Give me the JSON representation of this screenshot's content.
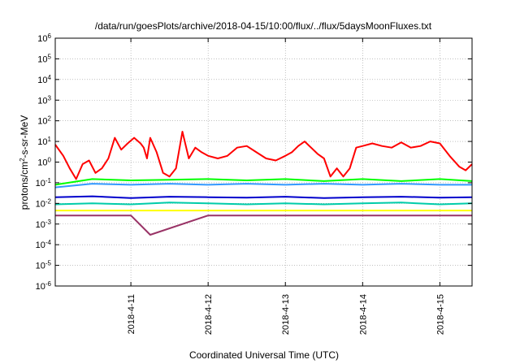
{
  "chart_data": {
    "type": "line",
    "title": "/data/run/goesPlots/archive/2018-04-15/10:00/flux/../flux/5daysMoonFluxes.txt",
    "xlabel": "Coordinated Universal Time (UTC)",
    "ylabel": "protons/cm²-s-sr-MeV",
    "ylabel_parts": {
      "pre": "protons/cm",
      "sup": "2",
      "post": "-s-sr-MeV"
    },
    "xlim": [
      "2018-04-10T00:30",
      "2018-04-15T10:00"
    ],
    "ylim": [
      1e-06,
      1000000.0
    ],
    "yscale": "log",
    "grid": true,
    "x_ticks": [
      {
        "label": "2018-4-11",
        "date": "2018-04-11T00:00"
      },
      {
        "label": "2018-4-12",
        "date": "2018-04-12T00:00"
      },
      {
        "label": "2018-4-13",
        "date": "2018-04-13T00:00"
      },
      {
        "label": "2018-4-14",
        "date": "2018-04-14T00:00"
      },
      {
        "label": "2018-4-15",
        "date": "2018-04-15T00:00"
      }
    ],
    "y_ticks": [
      {
        "base": "10",
        "exp": "-6",
        "value": 1e-06
      },
      {
        "base": "10",
        "exp": "-5",
        "value": 1e-05
      },
      {
        "base": "10",
        "exp": "-4",
        "value": 0.0001
      },
      {
        "base": "10",
        "exp": "-3",
        "value": 0.001
      },
      {
        "base": "10",
        "exp": "-2",
        "value": 0.01
      },
      {
        "base": "10",
        "exp": "-1",
        "value": 0.1
      },
      {
        "base": "10",
        "exp": "0",
        "value": 1
      },
      {
        "base": "10",
        "exp": "1",
        "value": 10
      },
      {
        "base": "10",
        "exp": "2",
        "value": 100
      },
      {
        "base": "10",
        "exp": "3",
        "value": 1000
      },
      {
        "base": "10",
        "exp": "4",
        "value": 10000
      },
      {
        "base": "10",
        "exp": "5",
        "value": 100000
      },
      {
        "base": "10",
        "exp": "6",
        "value": 1000000
      }
    ],
    "series": [
      {
        "color": "#ff0000",
        "x": [
          "2018-04-10T00:30",
          "2018-04-10T03:00",
          "2018-04-10T05:00",
          "2018-04-10T07:00",
          "2018-04-10T09:00",
          "2018-04-10T11:00",
          "2018-04-10T13:00",
          "2018-04-10T15:00",
          "2018-04-10T17:00",
          "2018-04-10T19:00",
          "2018-04-10T21:00",
          "2018-04-10T23:00",
          "2018-04-11T01:00",
          "2018-04-11T03:00",
          "2018-04-11T04:00",
          "2018-04-11T05:00",
          "2018-04-11T06:00",
          "2018-04-11T08:00",
          "2018-04-11T10:00",
          "2018-04-11T12:00",
          "2018-04-11T14:00",
          "2018-04-11T16:00",
          "2018-04-11T18:00",
          "2018-04-11T20:00",
          "2018-04-11T22:00",
          "2018-04-12T00:00",
          "2018-04-12T03:00",
          "2018-04-12T06:00",
          "2018-04-12T09:00",
          "2018-04-12T12:00",
          "2018-04-12T15:00",
          "2018-04-12T18:00",
          "2018-04-12T21:00",
          "2018-04-13T00:00",
          "2018-04-13T02:00",
          "2018-04-13T04:00",
          "2018-04-13T06:00",
          "2018-04-13T08:00",
          "2018-04-13T10:00",
          "2018-04-13T12:00",
          "2018-04-13T14:00",
          "2018-04-13T16:00",
          "2018-04-13T18:00",
          "2018-04-13T20:00",
          "2018-04-13T22:00",
          "2018-04-14T00:00",
          "2018-04-14T03:00",
          "2018-04-14T06:00",
          "2018-04-14T09:00",
          "2018-04-14T12:00",
          "2018-04-14T15:00",
          "2018-04-14T18:00",
          "2018-04-14T21:00",
          "2018-04-15T00:00",
          "2018-04-15T03:00",
          "2018-04-15T06:00",
          "2018-04-15T08:00",
          "2018-04-15T10:00"
        ],
        "values": [
          7,
          2,
          0.5,
          0.15,
          0.8,
          1.2,
          0.3,
          0.5,
          1.5,
          15,
          4,
          8,
          15,
          8,
          5,
          1.5,
          15,
          3,
          0.3,
          0.2,
          0.5,
          30,
          1.5,
          5,
          3,
          2,
          1.5,
          2,
          5,
          6,
          3,
          1.5,
          1.2,
          2,
          3,
          6,
          10,
          5,
          2.5,
          1.5,
          0.2,
          0.5,
          0.2,
          0.5,
          5,
          6,
          8,
          6,
          5,
          9,
          5,
          6,
          10,
          8,
          2,
          0.6,
          0.4,
          0.8
        ]
      },
      {
        "color": "#00ff00",
        "x": [
          "2018-04-10T00:30",
          "2018-04-10T12:00",
          "2018-04-11T00:00",
          "2018-04-11T12:00",
          "2018-04-12T00:00",
          "2018-04-12T12:00",
          "2018-04-13T00:00",
          "2018-04-13T12:00",
          "2018-04-14T00:00",
          "2018-04-14T12:00",
          "2018-04-15T00:00",
          "2018-04-15T10:00"
        ],
        "values": [
          0.08,
          0.15,
          0.13,
          0.14,
          0.15,
          0.13,
          0.15,
          0.12,
          0.15,
          0.12,
          0.15,
          0.12
        ]
      },
      {
        "color": "#3399ff",
        "x": [
          "2018-04-10T00:30",
          "2018-04-10T12:00",
          "2018-04-11T00:00",
          "2018-04-11T12:00",
          "2018-04-12T00:00",
          "2018-04-12T12:00",
          "2018-04-13T00:00",
          "2018-04-13T12:00",
          "2018-04-14T00:00",
          "2018-04-14T12:00",
          "2018-04-15T00:00",
          "2018-04-15T10:00"
        ],
        "values": [
          0.06,
          0.09,
          0.08,
          0.09,
          0.08,
          0.09,
          0.08,
          0.09,
          0.08,
          0.09,
          0.08,
          0.08
        ]
      },
      {
        "color": "#0000cc",
        "x": [
          "2018-04-10T00:30",
          "2018-04-10T12:00",
          "2018-04-11T00:00",
          "2018-04-11T12:00",
          "2018-04-12T00:00",
          "2018-04-12T12:00",
          "2018-04-13T00:00",
          "2018-04-13T12:00",
          "2018-04-14T00:00",
          "2018-04-14T12:00",
          "2018-04-15T00:00",
          "2018-04-15T10:00"
        ],
        "values": [
          0.02,
          0.022,
          0.018,
          0.021,
          0.02,
          0.019,
          0.021,
          0.018,
          0.02,
          0.021,
          0.019,
          0.02
        ]
      },
      {
        "color": "#00ccaa",
        "x": [
          "2018-04-10T00:30",
          "2018-04-10T12:00",
          "2018-04-11T00:00",
          "2018-04-11T12:00",
          "2018-04-12T00:00",
          "2018-04-12T12:00",
          "2018-04-13T00:00",
          "2018-04-13T12:00",
          "2018-04-14T00:00",
          "2018-04-14T12:00",
          "2018-04-15T00:00",
          "2018-04-15T10:00"
        ],
        "values": [
          0.009,
          0.01,
          0.009,
          0.011,
          0.01,
          0.009,
          0.01,
          0.009,
          0.01,
          0.011,
          0.009,
          0.01
        ]
      },
      {
        "color": "#ffff00",
        "x": [
          "2018-04-10T00:30",
          "2018-04-11T00:00",
          "2018-04-12T00:00",
          "2018-04-13T00:00",
          "2018-04-14T00:00",
          "2018-04-15T00:00",
          "2018-04-15T10:00"
        ],
        "values": [
          0.0045,
          0.0045,
          0.0045,
          0.0045,
          0.0045,
          0.0045,
          0.0045
        ]
      },
      {
        "color": "#993366",
        "x": [
          "2018-04-10T00:30",
          "2018-04-11T00:00",
          "2018-04-11T06:00",
          "2018-04-12T00:00",
          "2018-04-13T00:00",
          "2018-04-14T00:00",
          "2018-04-15T00:00",
          "2018-04-15T10:00"
        ],
        "values": [
          0.0026,
          0.0026,
          0.0003,
          0.0026,
          0.0026,
          0.0026,
          0.0026,
          0.0026
        ]
      }
    ]
  }
}
